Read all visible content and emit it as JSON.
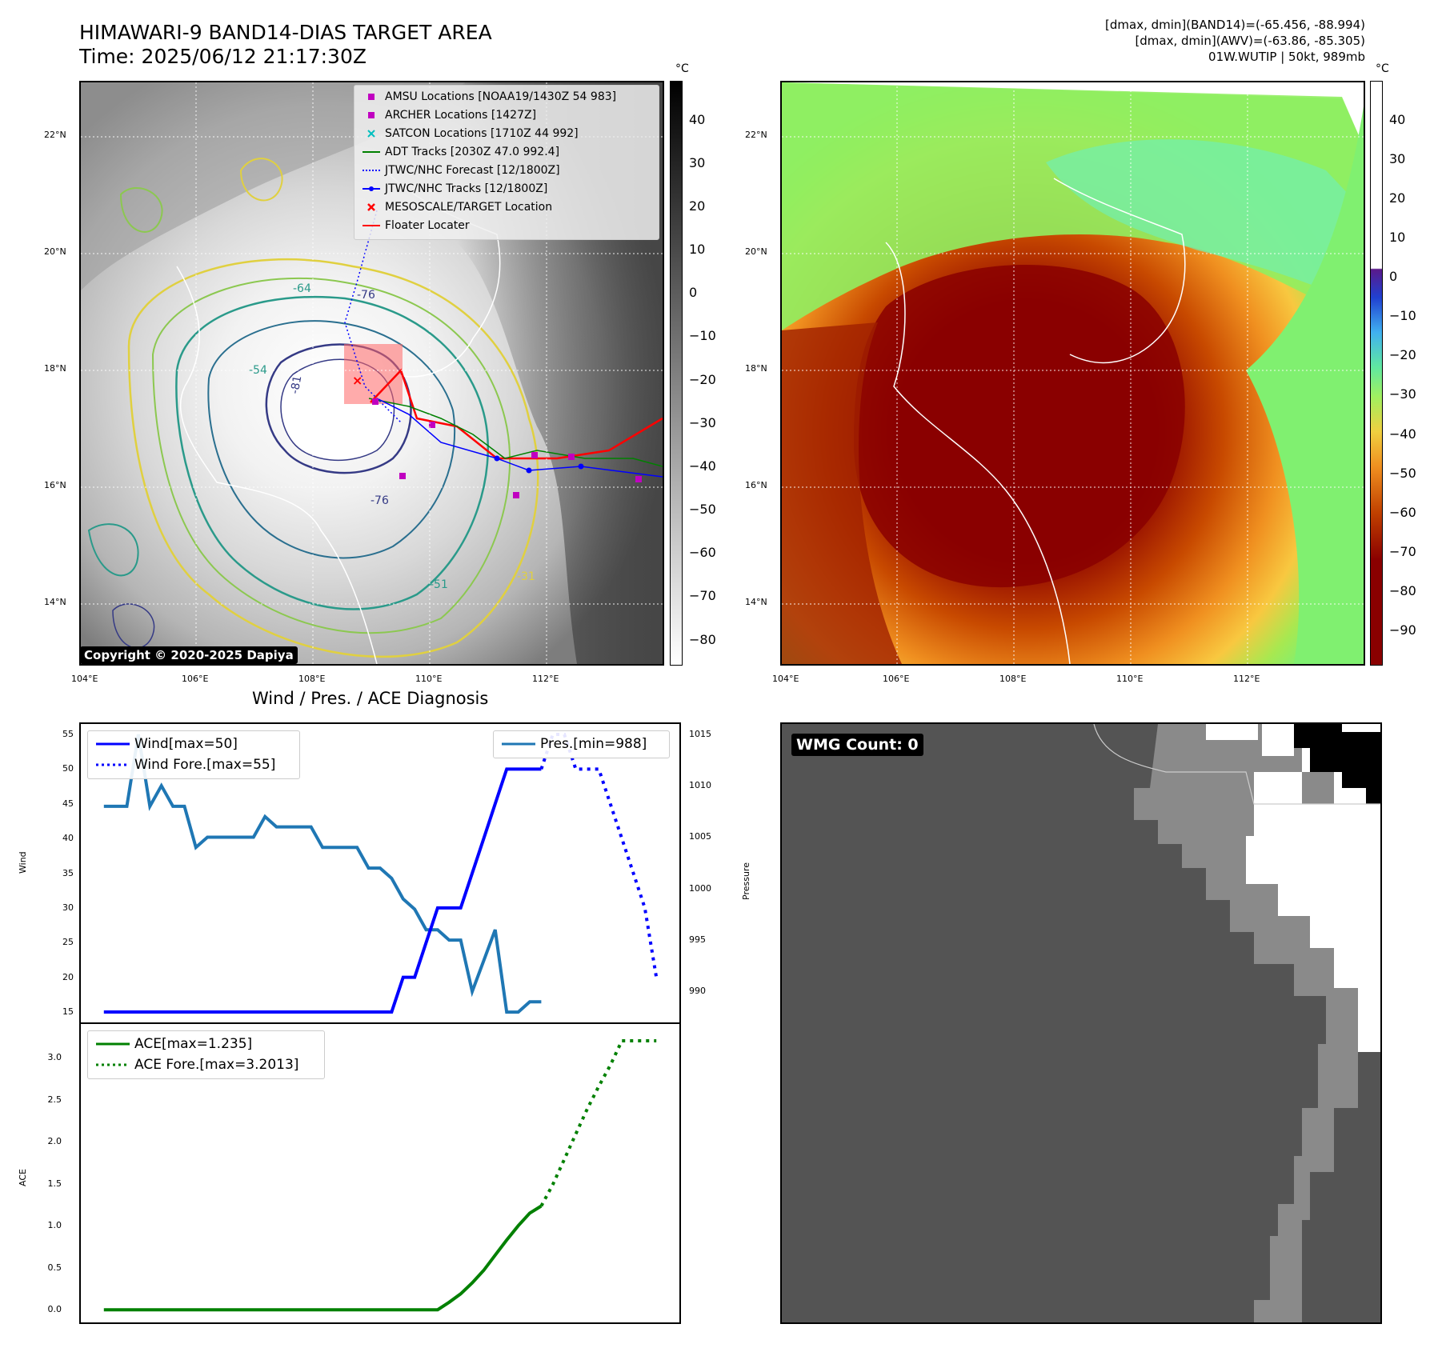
{
  "header": {
    "title_line1": "HIMAWARI-9 BAND14-DIAS TARGET AREA",
    "title_line2": "Time: 2025/06/12 21:17:30Z",
    "info_line1": "[dmax, dmin](BAND14)=(-65.456, -88.994)",
    "info_line2": "[dmax, dmin](AWV)=(-63.86, -85.305)",
    "info_line3": "01W.WUTIP | 50kt, 989mb"
  },
  "map_axes": {
    "lon_labels": [
      "104°E",
      "106°E",
      "108°E",
      "110°E",
      "112°E"
    ],
    "lat_labels": [
      "22°N",
      "20°N",
      "18°N",
      "16°N",
      "14°N"
    ]
  },
  "ir_panel": {
    "legend": [
      {
        "label": "AMSU Locations [NOAA19/1430Z 54 983]",
        "marker": "square",
        "color": "#c000c0"
      },
      {
        "label": "ARCHER Locations [1427Z]",
        "marker": "square",
        "color": "#c000c0"
      },
      {
        "label": "SATCON Locations [1710Z 44 992]",
        "marker": "x",
        "color": "#00bfbf"
      },
      {
        "label": "ADT Tracks [2030Z 47.0 992.4]",
        "marker": "line",
        "color": "#008000"
      },
      {
        "label": "JTWC/NHC Forecast [12/1800Z]",
        "marker": "dotted",
        "color": "#0000ff"
      },
      {
        "label": "JTWC/NHC Tracks [12/1800Z]",
        "marker": "dotline",
        "color": "#0000ff"
      },
      {
        "label": "MESOSCALE/TARGET Location",
        "marker": "x",
        "color": "#ff0000"
      },
      {
        "label": "Floater Locater",
        "marker": "line",
        "color": "#ff0000"
      }
    ],
    "copyright": "Copyright © 2020-2025 Dapiya",
    "colorbar_unit": "°C",
    "colorbar_ticks": [
      "40",
      "30",
      "20",
      "10",
      "0",
      "−10",
      "−20",
      "−30",
      "−40",
      "−50",
      "−60",
      "−70",
      "−80"
    ],
    "contour_labels": [
      "-76",
      "-81",
      "-64",
      "-54",
      "-76",
      "-31",
      "-51"
    ]
  },
  "wv_panel": {
    "colorbar_unit": "°C",
    "colorbar_ticks": [
      "40",
      "30",
      "20",
      "10",
      "0",
      "−10",
      "−20",
      "−30",
      "−40",
      "−50",
      "−60",
      "−70",
      "−80",
      "−90"
    ]
  },
  "diagnosis": {
    "title": "Wind / Pres. / ACE Diagnosis",
    "wind_ylabel": "Wind",
    "pres_ylabel": "Pressure",
    "ace_ylabel": "ACE"
  },
  "wmg": {
    "label": "WMG Count: 0"
  },
  "chart_data": [
    {
      "type": "line",
      "title": "Wind / Pres. / ACE Diagnosis",
      "ylabel": "Wind",
      "ylim": [
        13.5,
        56.5
      ],
      "yticks": [
        15,
        20,
        25,
        30,
        35,
        40,
        45,
        50,
        55
      ],
      "xlim": [
        -2,
        50
      ],
      "series": [
        {
          "name": "Wind[max=50]",
          "color": "#0000ff",
          "style": "solid",
          "x": [
            0,
            1,
            2,
            3,
            4,
            5,
            6,
            7,
            8,
            9,
            10,
            11,
            12,
            13,
            14,
            15,
            16,
            17,
            18,
            19,
            20,
            21,
            22,
            23,
            24,
            25,
            26,
            27,
            28,
            29,
            30,
            31,
            32,
            33,
            34,
            35,
            36,
            37,
            38
          ],
          "y": [
            15,
            15,
            15,
            15,
            15,
            15,
            15,
            15,
            15,
            15,
            15,
            15,
            15,
            15,
            15,
            15,
            15,
            15,
            15,
            15,
            15,
            15,
            15,
            15,
            15,
            15,
            20,
            20,
            25,
            30,
            30,
            30,
            35,
            40,
            45,
            50,
            50,
            50,
            50
          ]
        },
        {
          "name": "Wind Fore.[max=55]",
          "color": "#0000ff",
          "style": "dotted",
          "x": [
            38,
            39,
            40,
            41,
            42,
            43,
            44,
            45,
            46,
            47,
            48
          ],
          "y": [
            50,
            55,
            55,
            50,
            50,
            50,
            45,
            40,
            35,
            30,
            20
          ]
        }
      ]
    },
    {
      "type": "line",
      "ylabel": "Pressure",
      "ylim": [
        987,
        1016
      ],
      "yticks": [
        990,
        995,
        1000,
        1005,
        1010,
        1015
      ],
      "xlim": [
        -2,
        50
      ],
      "series": [
        {
          "name": "Pres.[min=988]",
          "color": "#1f77b4",
          "style": "solid",
          "x": [
            0,
            1,
            2,
            3,
            4,
            5,
            6,
            7,
            8,
            9,
            10,
            11,
            12,
            13,
            14,
            15,
            16,
            17,
            18,
            19,
            20,
            21,
            22,
            23,
            24,
            25,
            26,
            27,
            28,
            29,
            30,
            31,
            32,
            33,
            34,
            35,
            36,
            37,
            38
          ],
          "y": [
            1008,
            1008,
            1008,
            1015,
            1008,
            1010,
            1008,
            1008,
            1004,
            1005,
            1005,
            1005,
            1005,
            1005,
            1007,
            1006,
            1006,
            1006,
            1006,
            1004,
            1004,
            1004,
            1004,
            1002,
            1002,
            1001,
            999,
            998,
            996,
            996,
            995,
            995,
            990,
            993,
            996,
            988,
            988,
            989,
            989
          ]
        }
      ]
    },
    {
      "type": "line",
      "ylabel": "ACE",
      "ylim": [
        -0.15,
        3.4
      ],
      "yticks": [
        0.0,
        0.5,
        1.0,
        1.5,
        2.0,
        2.5,
        3.0
      ],
      "xlim": [
        -2,
        50
      ],
      "series": [
        {
          "name": "ACE[max=1.235]",
          "color": "#008000",
          "style": "solid",
          "x": [
            0,
            5,
            10,
            15,
            20,
            25,
            29,
            30,
            31,
            32,
            33,
            34,
            35,
            36,
            37,
            38
          ],
          "y": [
            0,
            0,
            0,
            0,
            0,
            0,
            0,
            0.09,
            0.19,
            0.32,
            0.47,
            0.65,
            0.83,
            1.0,
            1.15,
            1.235
          ]
        },
        {
          "name": "ACE Fore.[max=3.2013]",
          "color": "#008000",
          "style": "dotted",
          "x": [
            38,
            39,
            40,
            41,
            42,
            43,
            44,
            45,
            46,
            47,
            48
          ],
          "y": [
            1.235,
            1.49,
            1.79,
            2.09,
            2.39,
            2.66,
            2.91,
            3.2,
            3.2,
            3.2,
            3.2
          ]
        }
      ]
    }
  ]
}
